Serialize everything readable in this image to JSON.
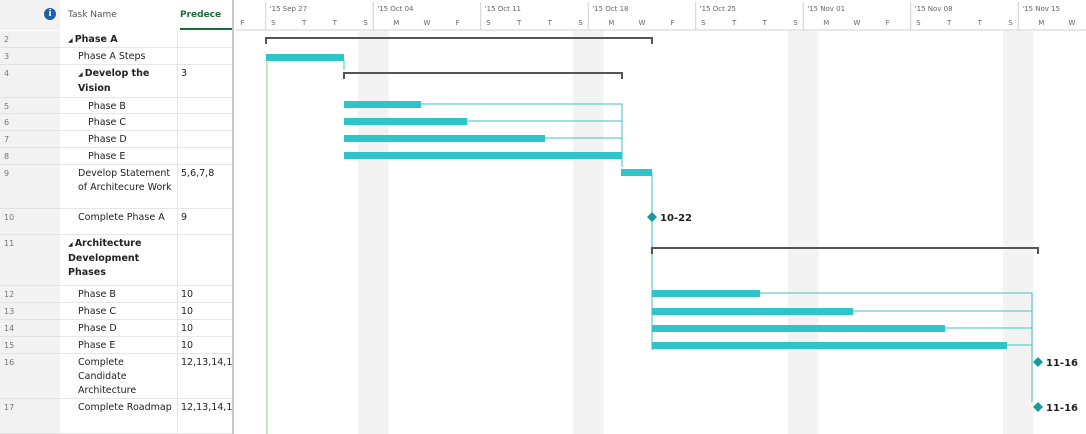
{
  "header": {
    "task_name": "Task Name",
    "predecessors": "Predece"
  },
  "timeline": {
    "weeks": [
      "'15 Sep 27",
      "'15 Oct 04",
      "'15 Oct 11",
      "'15 Oct 18",
      "'15 Oct 25",
      "'15 Nov 01",
      "'15 Nov 08",
      "'15 Nov 15"
    ],
    "days": [
      "F",
      "S",
      "T",
      "T",
      "S",
      "M",
      "W",
      "F",
      "S",
      "T",
      "T",
      "S",
      "M",
      "W",
      "F",
      "S",
      "T",
      "T",
      "S",
      "M",
      "W",
      "F",
      "S",
      "T",
      "T",
      "S",
      "M",
      "W"
    ]
  },
  "rows": [
    {
      "id": "2",
      "name": "Phase A",
      "predecessors": ""
    },
    {
      "id": "3",
      "name": "Phase A Steps",
      "predecessors": ""
    },
    {
      "id": "4",
      "name": "Develop the Vision",
      "predecessors": "3"
    },
    {
      "id": "5",
      "name": "Phase B",
      "predecessors": ""
    },
    {
      "id": "6",
      "name": "Phase C",
      "predecessors": ""
    },
    {
      "id": "7",
      "name": "Phase D",
      "predecessors": ""
    },
    {
      "id": "8",
      "name": "Phase E",
      "predecessors": ""
    },
    {
      "id": "9",
      "name": "Develop Statement of Architecure Work",
      "predecessors": "5,6,7,8"
    },
    {
      "id": "10",
      "name": "Complete Phase A",
      "predecessors": "9",
      "milestone_label": "10-22"
    },
    {
      "id": "11",
      "name": "Architecture Development Phases",
      "predecessors": ""
    },
    {
      "id": "12",
      "name": "Phase B",
      "predecessors": "10"
    },
    {
      "id": "13",
      "name": "Phase C",
      "predecessors": "10"
    },
    {
      "id": "14",
      "name": "Phase D",
      "predecessors": "10"
    },
    {
      "id": "15",
      "name": "Phase E",
      "predecessors": "10"
    },
    {
      "id": "16",
      "name": "Complete Candidate Architecture",
      "predecessors": "12,13,14,1",
      "milestone_label": "11-16"
    },
    {
      "id": "17",
      "name": "Complete Roadmap",
      "predecessors": "12,13,14,1",
      "milestone_label": "11-16"
    }
  ]
}
